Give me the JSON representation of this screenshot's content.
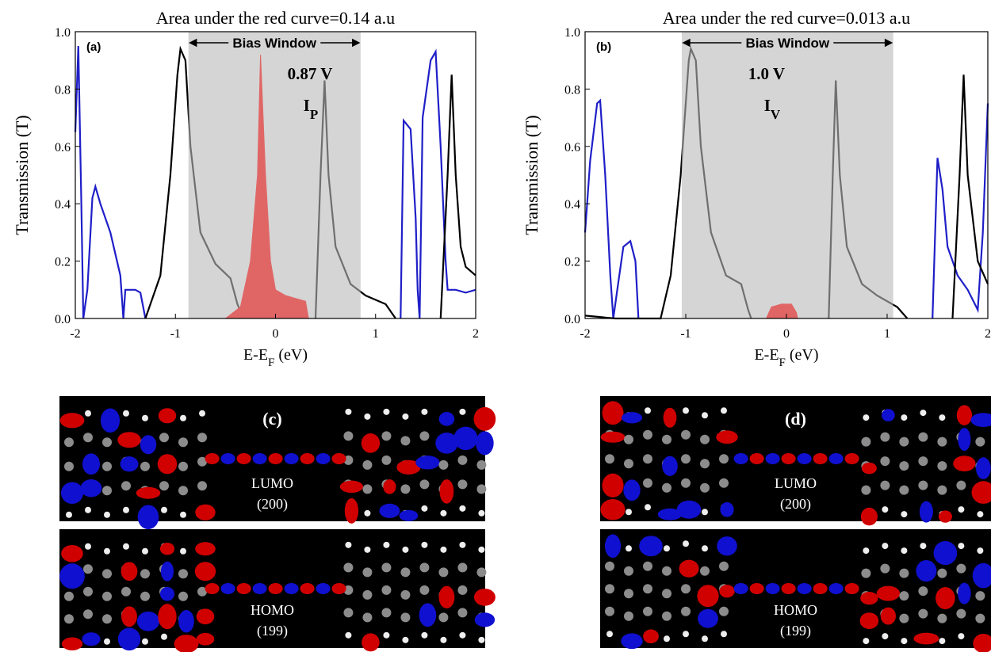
{
  "chart_data": [
    {
      "type": "line",
      "title": "Area under the red curve=0.14 a.u",
      "x_label": [
        "E-E",
        "F",
        " (eV)"
      ],
      "y_label": "Transmission (T)",
      "xlim": [
        -2,
        2
      ],
      "ylim": [
        0,
        1
      ],
      "xticks": [
        -2,
        -1,
        0,
        1,
        2
      ],
      "yticks": [
        {
          "value": 0,
          "label": "0.0"
        },
        {
          "value": 0.2,
          "label": "0.2"
        },
        {
          "value": 0.4,
          "label": "0.4"
        },
        {
          "value": 0.6,
          "label": "0.6"
        },
        {
          "value": 0.8,
          "label": "0.8"
        },
        {
          "value": 1,
          "label": "1.0"
        }
      ],
      "panel_label": "(a)",
      "window_label": "Bias Window",
      "bias_window": [
        -0.87,
        0.85
      ],
      "voltage_label": "0.87 V",
      "current_label": [
        "I",
        "P"
      ],
      "series": [
        {
          "color": "#1f1fc8",
          "x": [
            -2,
            -1.97,
            -1.94,
            -1.92,
            -1.88,
            -1.83,
            -1.8,
            -1.75,
            -1.65,
            -1.55,
            -1.52,
            -1.5,
            -1.4,
            -1.35,
            -1.3,
            0,
            1.25,
            1.28,
            1.35,
            1.4,
            1.42,
            1.44,
            1.47,
            1.55,
            1.6,
            1.65,
            1.7,
            1.72,
            1.8,
            1.9,
            2
          ],
          "values": [
            0.65,
            0.95,
            0.4,
            0,
            0.1,
            0.42,
            0.46,
            0.4,
            0.3,
            0.15,
            0,
            0.1,
            0.1,
            0.09,
            0,
            null,
            0,
            0.69,
            0.66,
            0.35,
            0.1,
            0,
            0.7,
            0.9,
            0.93,
            0.6,
            0.2,
            0.1,
            0.1,
            0.09,
            0.1
          ]
        },
        {
          "color": "#000000",
          "x": [
            -1.3,
            -1.15,
            -1.05,
            -0.98,
            -0.95,
            -0.9,
            -0.85,
            -0.75,
            -0.6,
            -0.45,
            -0.38,
            -0.32,
            0,
            0.4,
            0.45,
            0.49,
            0.53,
            0.6,
            0.75,
            0.9,
            1.1,
            1.2,
            1.5,
            1.65,
            1.72,
            1.76,
            1.8,
            1.85,
            1.9,
            2
          ],
          "values": [
            0,
            0.15,
            0.5,
            0.85,
            0.94,
            0.9,
            0.6,
            0.3,
            0.19,
            0.14,
            0.05,
            0,
            null,
            0,
            0.5,
            0.83,
            0.5,
            0.25,
            0.12,
            0.08,
            0.05,
            0,
            null,
            0,
            0.5,
            0.85,
            0.5,
            0.25,
            0.18,
            0.15
          ]
        },
        {
          "color": "#e06666",
          "fill": true,
          "x": [
            -0.5,
            -0.35,
            -0.25,
            -0.18,
            -0.15,
            -0.1,
            -0.05,
            0,
            0.1,
            0.2,
            0.3,
            0.33
          ],
          "values": [
            0,
            0.04,
            0.2,
            0.5,
            0.92,
            0.5,
            0.2,
            0.1,
            0.08,
            0.07,
            0.06,
            0
          ]
        }
      ]
    },
    {
      "type": "line",
      "title": "Area under the red curve=0.013 a.u",
      "x_label": [
        "E-E",
        "F",
        " (eV)"
      ],
      "y_label": "Transmission (T)",
      "xlim": [
        -2,
        2
      ],
      "ylim": [
        0,
        1
      ],
      "xticks": [
        -2,
        -1,
        0,
        1,
        2
      ],
      "yticks": [
        {
          "value": 0,
          "label": "0.0"
        },
        {
          "value": 0.2,
          "label": "0.2"
        },
        {
          "value": 0.4,
          "label": "0.4"
        },
        {
          "value": 0.6,
          "label": "0.6"
        },
        {
          "value": 0.8,
          "label": "0.8"
        },
        {
          "value": 1,
          "label": "1.0"
        }
      ],
      "panel_label": "(b)",
      "window_label": "Bias Window",
      "bias_window": [
        -1.04,
        1.06
      ],
      "voltage_label": "1.0 V",
      "current_label": [
        "I",
        "V"
      ],
      "series": [
        {
          "color": "#1f1fc8",
          "x": [
            -2,
            -1.95,
            -1.88,
            -1.85,
            -1.8,
            -1.75,
            -1.72,
            -1.68,
            -1.62,
            -1.55,
            -1.5,
            -1.47,
            0,
            1.45,
            1.5,
            1.55,
            1.6,
            1.7,
            1.8,
            1.9,
            1.95,
            2
          ],
          "values": [
            0.3,
            0.55,
            0.75,
            0.76,
            0.5,
            0.15,
            0,
            0.1,
            0.25,
            0.27,
            0.2,
            0,
            null,
            0,
            0.56,
            0.45,
            0.25,
            0.15,
            0.1,
            0.03,
            0.3,
            0.75
          ]
        },
        {
          "color": "#000000",
          "x": [
            -2,
            -1.7,
            -1.25,
            -1.15,
            -1.05,
            -0.97,
            -0.95,
            -0.9,
            -0.85,
            -0.75,
            -0.6,
            -0.45,
            -0.38,
            -0.35,
            0,
            0.42,
            0.46,
            0.49,
            0.53,
            0.6,
            0.75,
            0.9,
            1.1,
            1.2,
            1.5,
            1.65,
            1.72,
            1.76,
            1.8,
            1.9,
            2
          ],
          "values": [
            0.01,
            0,
            0,
            0.15,
            0.5,
            0.9,
            0.94,
            0.9,
            0.6,
            0.3,
            0.15,
            0.12,
            0.03,
            0,
            null,
            0,
            0.5,
            0.83,
            0.5,
            0.25,
            0.12,
            0.08,
            0.04,
            0,
            null,
            0,
            0.5,
            0.85,
            0.5,
            0.2,
            0.12
          ]
        },
        {
          "color": "#e06666",
          "fill": true,
          "x": [
            -0.2,
            -0.15,
            -0.05,
            0.05,
            0.1,
            0.11
          ],
          "values": [
            0,
            0.04,
            0.05,
            0.05,
            0.02,
            0
          ]
        }
      ]
    }
  ],
  "panels": [
    {
      "label": "(c)",
      "orbitals": [
        {
          "name": "LUMO",
          "level": "(200)"
        },
        {
          "name": "HOMO",
          "level": "(199)"
        }
      ]
    },
    {
      "label": "(d)",
      "orbitals": [
        {
          "name": "LUMO",
          "level": "(200)"
        },
        {
          "name": "HOMO",
          "level": "(199)"
        }
      ]
    }
  ]
}
